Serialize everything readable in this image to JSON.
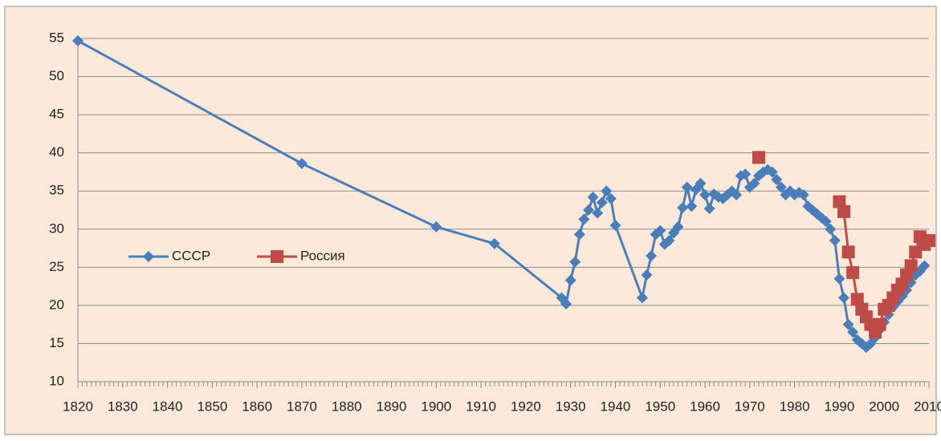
{
  "chart_data": {
    "type": "line",
    "x": [
      1820,
      1870,
      1900,
      1913,
      1928,
      1929,
      1930,
      1931,
      1932,
      1933,
      1934,
      1935,
      1936,
      1937,
      1938,
      1939,
      1940,
      1946,
      1947,
      1948,
      1949,
      1950,
      1951,
      1952,
      1953,
      1954,
      1955,
      1956,
      1957,
      1958,
      1959,
      1960,
      1961,
      1962,
      1963,
      1964,
      1965,
      1966,
      1967,
      1968,
      1969,
      1970,
      1971,
      1972,
      1973,
      1974,
      1975,
      1976,
      1977,
      1978,
      1979,
      1980,
      1981,
      1982,
      1983,
      1984,
      1985,
      1986,
      1987,
      1988,
      1989,
      1990,
      1991,
      1992,
      1993,
      1994,
      1995,
      1996,
      1997,
      1998,
      1999,
      2000,
      2001,
      2002,
      2003,
      2004,
      2005,
      2006,
      2007,
      2008,
      2009,
      2010
    ],
    "series": [
      {
        "name": "СССР",
        "color": "#4a7ebb",
        "marker": "diamond",
        "values": [
          54.7,
          38.6,
          30.3,
          28.1,
          21.0,
          20.2,
          23.3,
          25.7,
          29.3,
          31.3,
          32.5,
          34.2,
          32.1,
          33.5,
          35.0,
          34.0,
          30.5,
          21.0,
          24.0,
          26.5,
          29.3,
          29.8,
          28.0,
          28.5,
          29.5,
          30.3,
          32.8,
          35.5,
          33.0,
          35.2,
          36.0,
          34.5,
          32.7,
          34.6,
          34.2,
          34.0,
          34.5,
          35.0,
          34.5,
          37.0,
          37.2,
          35.5,
          36.0,
          37.0,
          37.5,
          37.8,
          37.5,
          36.5,
          35.5,
          34.5,
          35.0,
          34.5,
          34.8,
          34.5,
          33.0,
          32.5,
          32.0,
          31.5,
          31.0,
          30.0,
          28.5,
          23.5,
          21.0,
          17.5,
          16.5,
          15.5,
          15.0,
          14.5,
          15.0,
          15.8,
          16.8,
          17.8,
          18.8,
          19.8,
          20.5,
          21.2,
          22.0,
          23.0,
          24.0,
          24.5,
          25.2,
          null
        ]
      },
      {
        "name": "Россия",
        "color": "#be4b48",
        "marker": "square",
        "values": [
          null,
          null,
          null,
          null,
          null,
          null,
          null,
          null,
          null,
          null,
          null,
          null,
          null,
          null,
          null,
          null,
          null,
          null,
          null,
          null,
          null,
          null,
          null,
          null,
          null,
          null,
          null,
          null,
          null,
          null,
          null,
          null,
          null,
          null,
          null,
          null,
          null,
          null,
          null,
          null,
          null,
          null,
          null,
          39.4,
          null,
          null,
          null,
          null,
          null,
          null,
          null,
          null,
          null,
          null,
          null,
          null,
          null,
          null,
          null,
          null,
          null,
          33.6,
          32.3,
          27.0,
          24.3,
          20.8,
          19.5,
          18.5,
          17.5,
          16.5,
          17.5,
          19.5,
          20.0,
          21.0,
          22.0,
          22.8,
          24.0,
          25.2,
          27.0,
          29.0,
          28.0,
          28.5
        ]
      }
    ],
    "xlim": [
      1820,
      2010
    ],
    "xticks": [
      1820,
      1830,
      1840,
      1850,
      1860,
      1870,
      1880,
      1890,
      1900,
      1910,
      1920,
      1930,
      1940,
      1950,
      1960,
      1970,
      1980,
      1990,
      2000,
      2010
    ],
    "ylim": [
      10,
      55
    ],
    "yticks": [
      10,
      15,
      20,
      25,
      30,
      35,
      40,
      45,
      50,
      55
    ],
    "grid": true,
    "legend": "left",
    "background": "#fde9d9"
  }
}
